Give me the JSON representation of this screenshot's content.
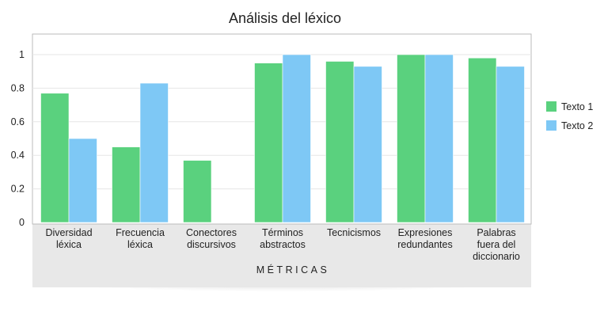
{
  "chart_data": {
    "type": "bar",
    "title": "Análisis del léxico",
    "xlabel": "MÉTRICAS",
    "ylabel": "",
    "ylim": [
      0,
      1.1
    ],
    "yticks": [
      "0",
      "0.2",
      "0.4",
      "0.6",
      "0.8",
      "1"
    ],
    "grid": true,
    "legend_position": "right",
    "categories": [
      [
        "Diversidad",
        "léxica"
      ],
      [
        "Frecuencia",
        "léxica"
      ],
      [
        "Conectores",
        "discursivos"
      ],
      [
        "Términos",
        "abstractos"
      ],
      [
        "Tecnicismos"
      ],
      [
        "Expresiones",
        "redundantes"
      ],
      [
        "Palabras",
        "fuera del",
        "diccionario"
      ]
    ],
    "series": [
      {
        "name": "Texto 1",
        "color": "#5ad17e",
        "values": [
          0.77,
          0.45,
          0.37,
          0.95,
          0.96,
          1.0,
          0.98
        ]
      },
      {
        "name": "Texto 2",
        "color": "#7ec8f5",
        "values": [
          0.5,
          0.83,
          0,
          1.0,
          0.93,
          1.0,
          0.93
        ]
      }
    ]
  }
}
